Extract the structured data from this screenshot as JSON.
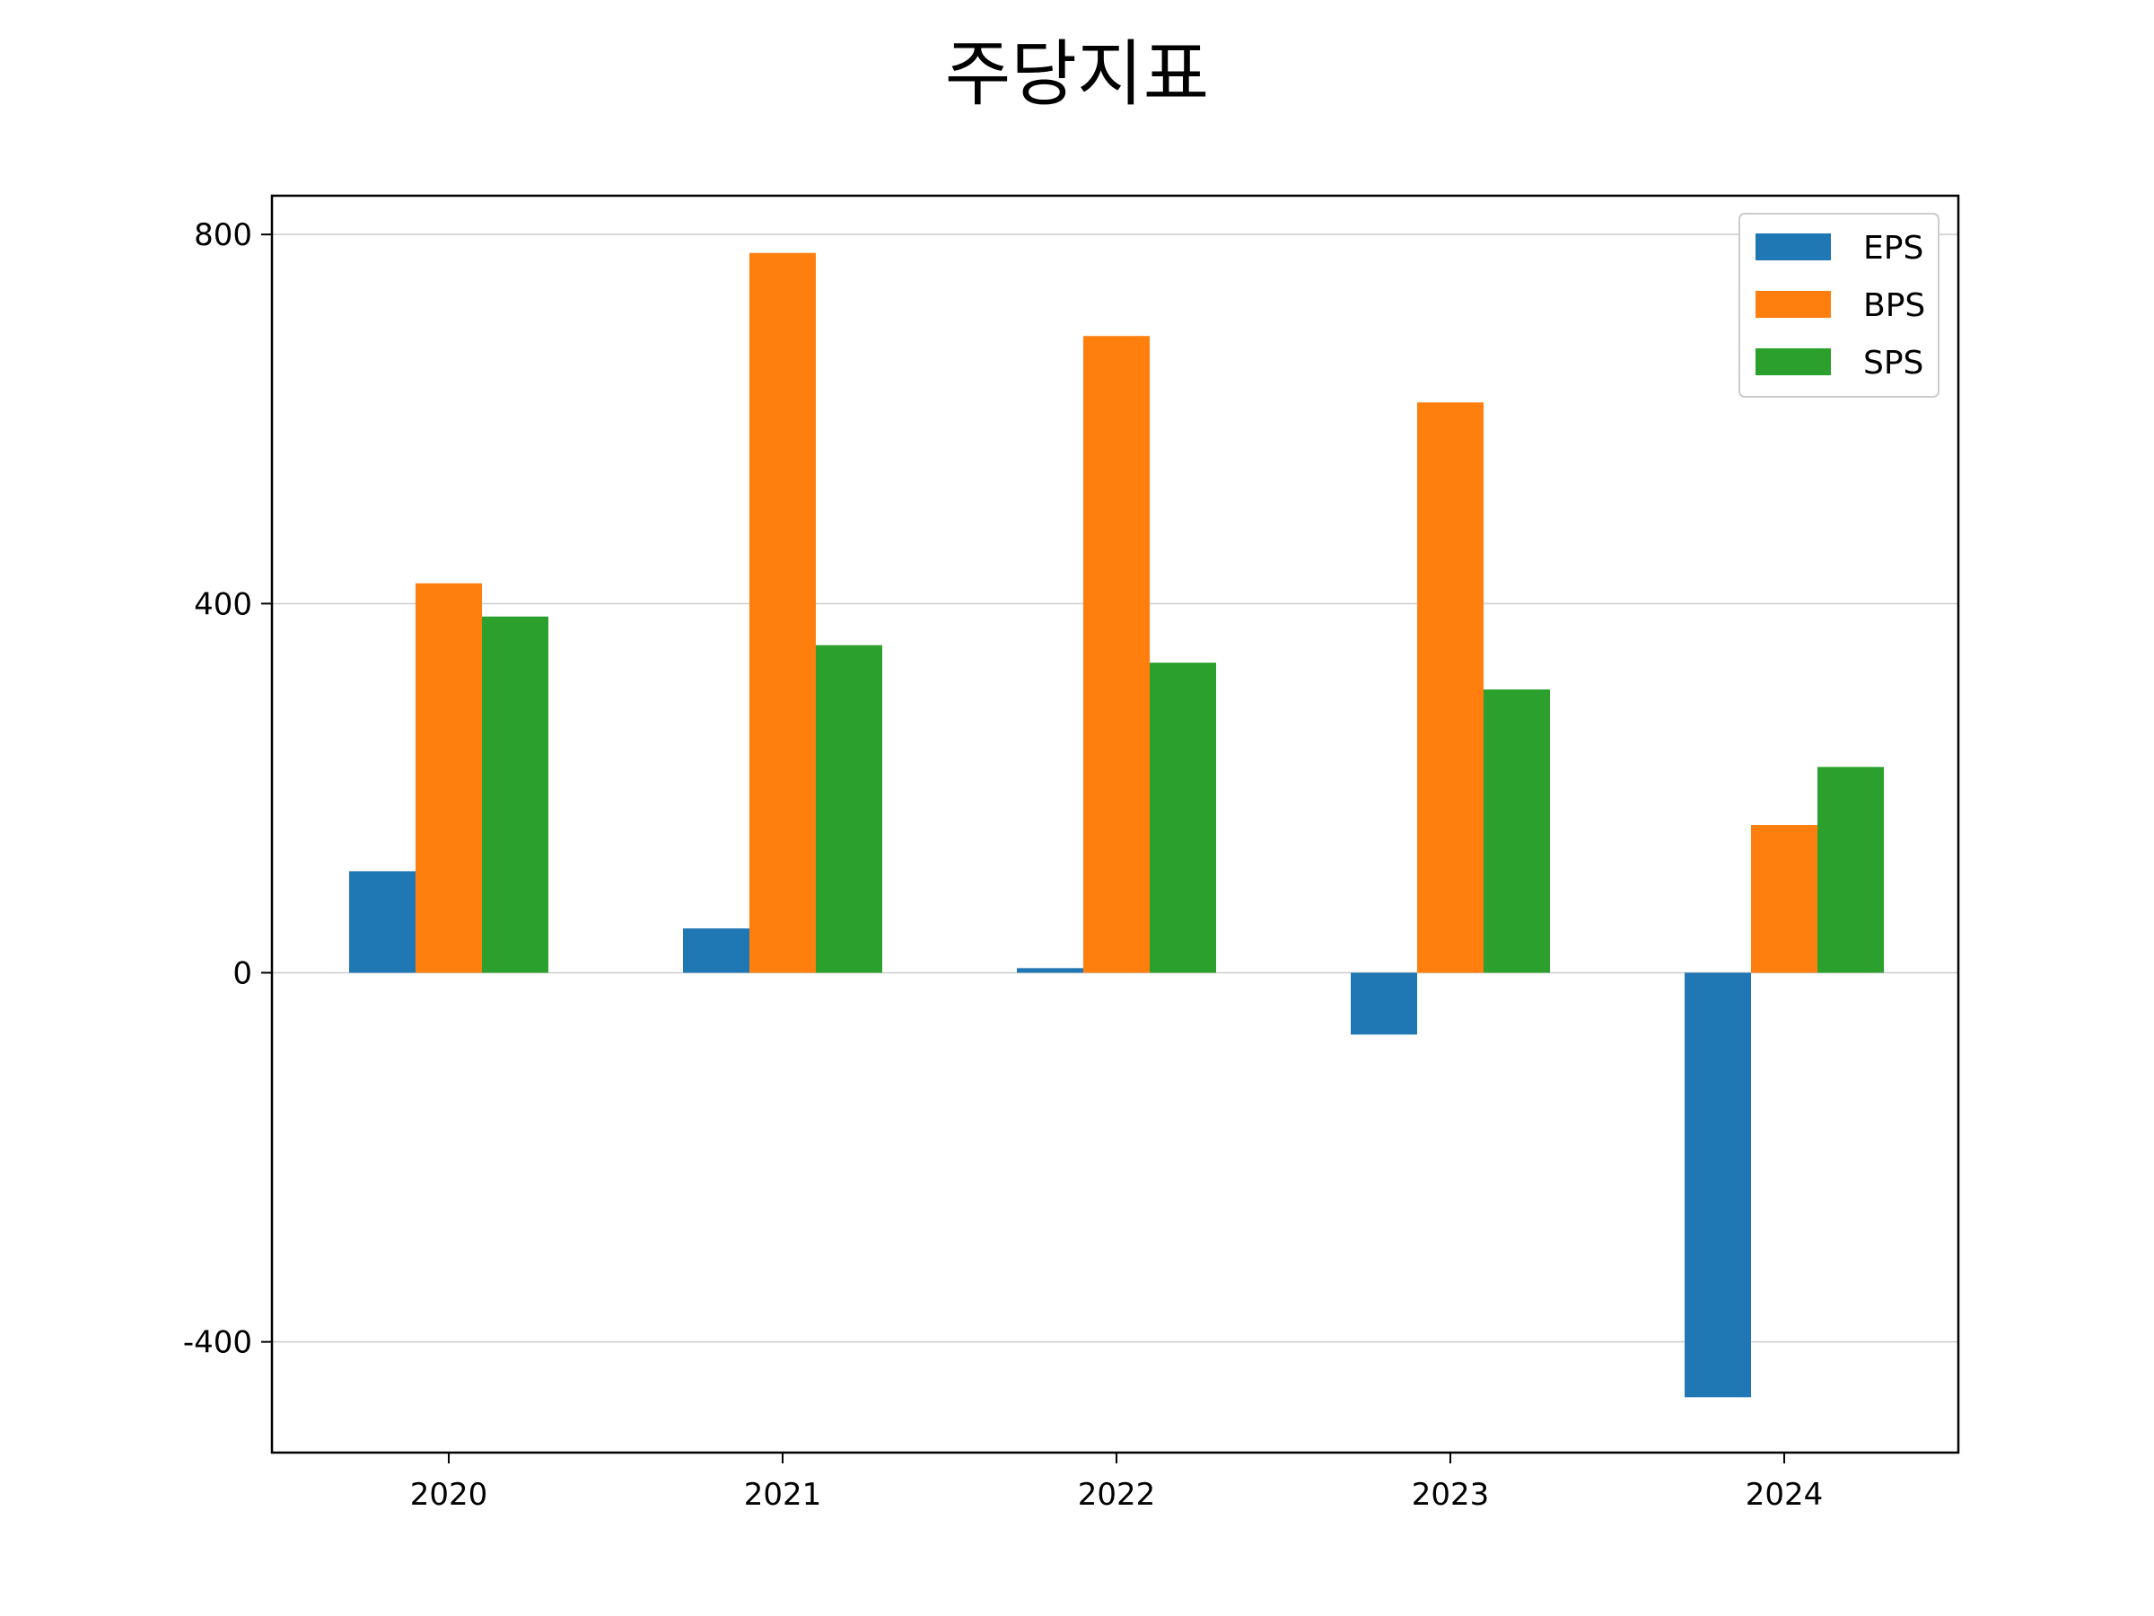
{
  "chart_data": {
    "type": "bar",
    "title": "주당지표",
    "xlabel": "",
    "ylabel": "",
    "categories": [
      "2020",
      "2021",
      "2022",
      "2023",
      "2024"
    ],
    "series": [
      {
        "name": "EPS",
        "color": "#1f77b4",
        "values": [
          110,
          48,
          5,
          -67,
          -460
        ]
      },
      {
        "name": "BPS",
        "color": "#ff7f0e",
        "values": [
          422,
          780,
          690,
          618,
          160
        ]
      },
      {
        "name": "SPS",
        "color": "#2ca02c",
        "values": [
          386,
          355,
          336,
          307,
          223
        ]
      }
    ],
    "ylim": [
      -520,
      842
    ],
    "yticks": [
      800,
      400,
      0,
      -400
    ],
    "ytick_labels": [
      "800",
      "400",
      "0",
      "-400"
    ],
    "grid": "horizontal",
    "legend": "top-right"
  }
}
